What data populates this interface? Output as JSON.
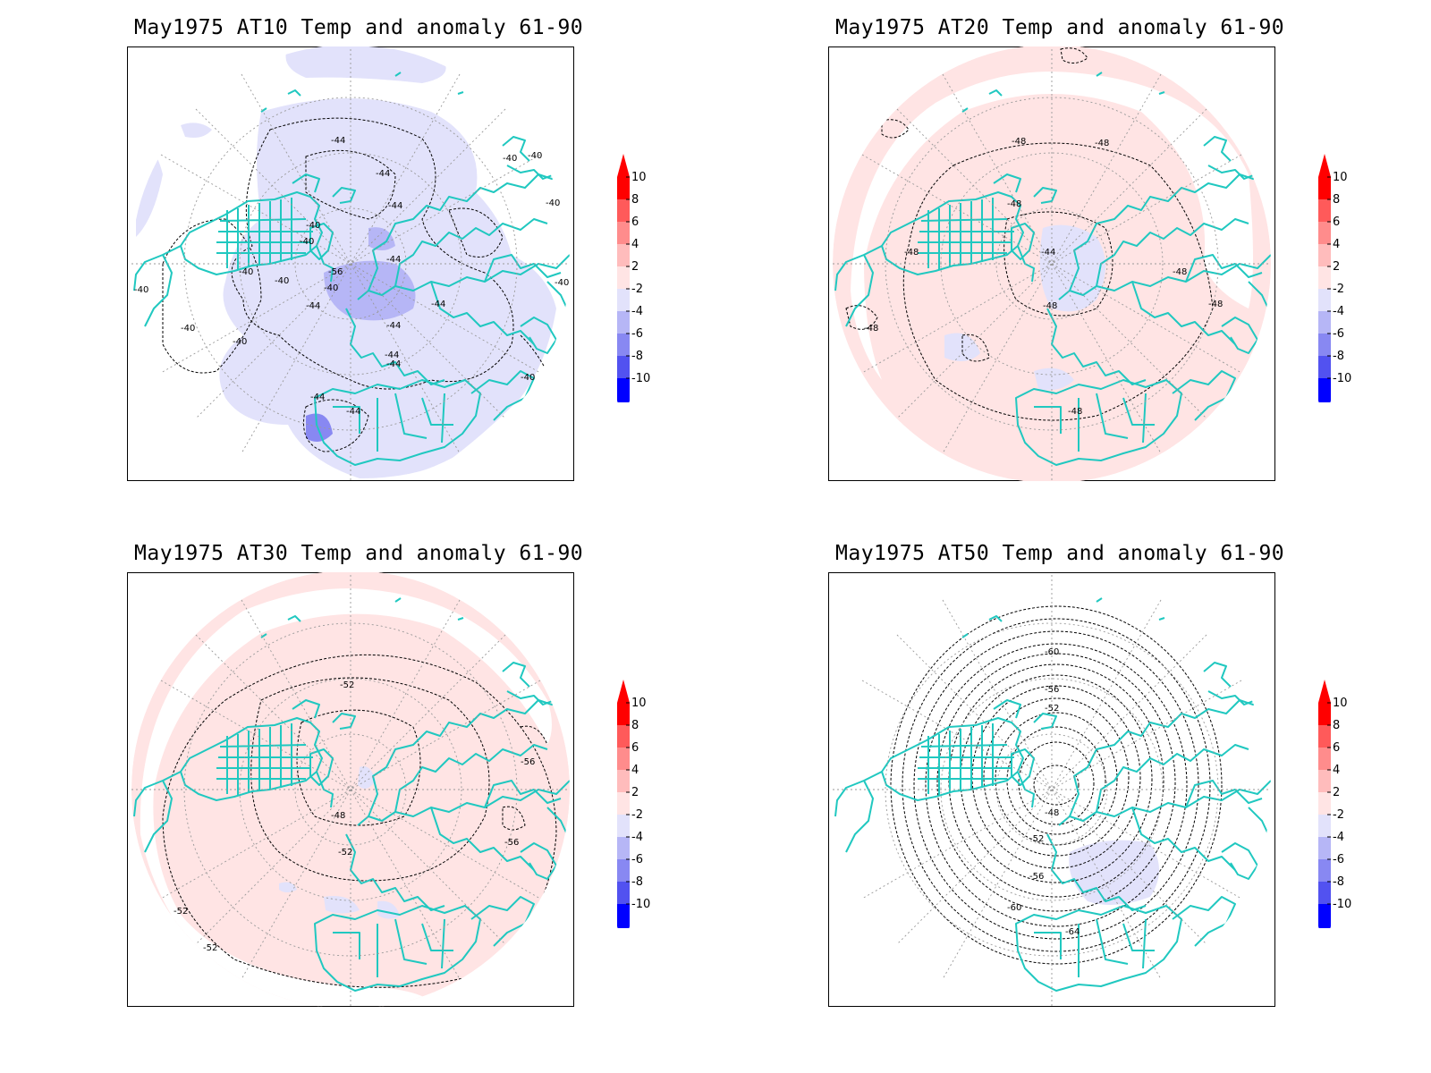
{
  "colorbar": {
    "levels": [
      "10",
      "8",
      "6",
      "4",
      "2",
      "-2",
      "-4",
      "-6",
      "-8",
      "-10"
    ],
    "colors": {
      "c10": "#ff0000",
      "c8": "#ff5a5a",
      "c6": "#ff8c8c",
      "c4": "#ffbcbc",
      "c2": "#ffe4e4",
      "cm2": "#e2e2fb",
      "cm4": "#b6b6f6",
      "cm6": "#8888f2",
      "cm8": "#5252f0",
      "cm10": "#0000ff"
    }
  },
  "panels": [
    {
      "title": "May1975 AT10 Temp and anomaly 61-90",
      "contour_labels": [
        "-44",
        "-40",
        "-40",
        "-44",
        "-44",
        "-40",
        "-40",
        "-40",
        "-40",
        "-40",
        "-40",
        "-56",
        "-40",
        "-44",
        "-44",
        "-44",
        "-44",
        "-40",
        "-40",
        "-40",
        "-40",
        "-44",
        "-44",
        "-44",
        "-44"
      ]
    },
    {
      "title": "May1975 AT20 Temp and anomaly 61-90",
      "contour_labels": [
        "-48",
        "-48",
        "-48",
        "-48",
        "-44",
        "-48",
        "-48",
        "-48",
        "-48",
        "-48"
      ]
    },
    {
      "title": "May1975 AT30 Temp and anomaly 61-90",
      "contour_labels": [
        "-52",
        "-56",
        "-56",
        "-48",
        "-52",
        "-52",
        "-52"
      ]
    },
    {
      "title": "May1975 AT50 Temp and anomaly 61-90",
      "contour_labels": [
        "-60",
        "-56",
        "-52",
        "-48",
        "-52",
        "-56",
        "-60",
        "-64"
      ]
    }
  ]
}
